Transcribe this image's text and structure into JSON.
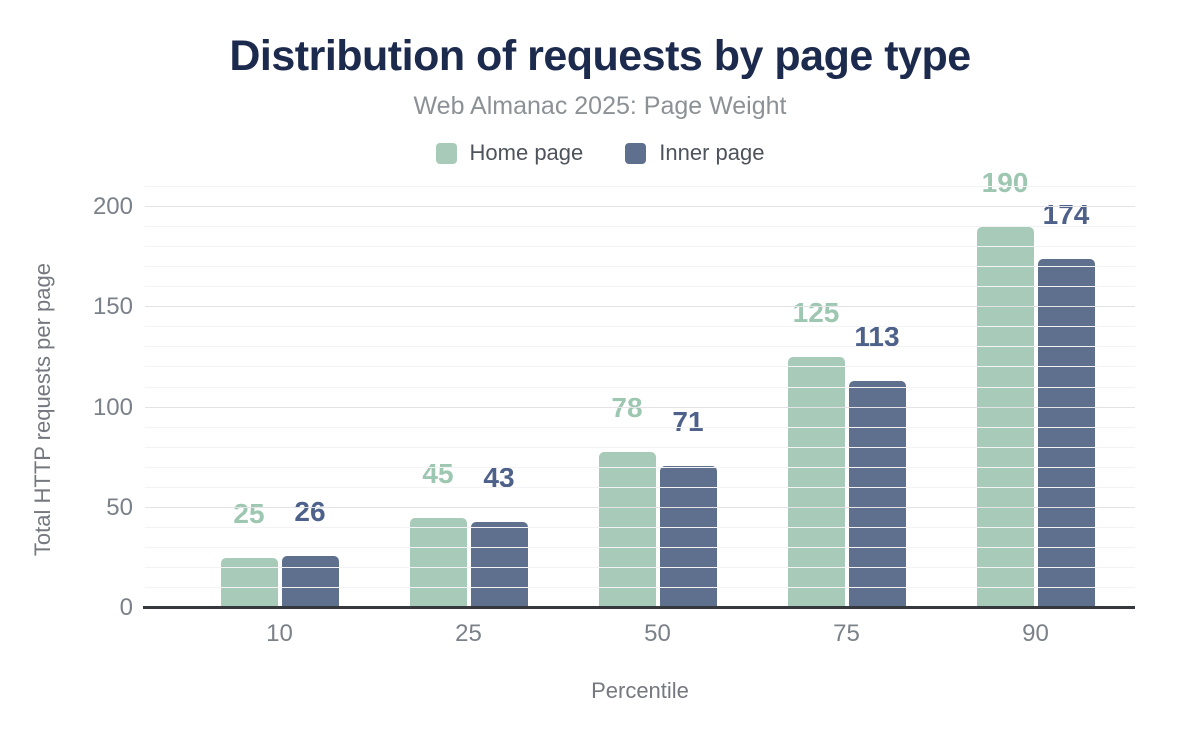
{
  "header": {
    "title": "Distribution of requests by page type",
    "subtitle": "Web Almanac 2025: Page Weight"
  },
  "colors": {
    "title": "#1c2a4d",
    "subtitle": "#8c9196",
    "axis_text": "#7b8189",
    "axis_line": "#35383d",
    "home_bar": "#a8cab9",
    "home_label": "#9dc7b1",
    "inner_bar": "#5e708e",
    "inner_label": "#4e618a"
  },
  "chart_data": {
    "type": "bar",
    "title": "Distribution of requests by page type",
    "subtitle": "Web Almanac 2025: Page Weight",
    "xlabel": "Percentile",
    "ylabel": "Total HTTP requests per page",
    "categories": [
      "10",
      "25",
      "50",
      "75",
      "90"
    ],
    "series": [
      {
        "name": "Home page",
        "color": "#a8cab9",
        "label_color": "#9dc7b1",
        "values": [
          25,
          45,
          78,
          125,
          190
        ]
      },
      {
        "name": "Inner page",
        "color": "#5e708e",
        "label_color": "#4e618a",
        "values": [
          26,
          43,
          71,
          113,
          174
        ]
      }
    ],
    "ylim": [
      0,
      215
    ],
    "yticks": [
      0,
      50,
      100,
      150,
      200
    ],
    "minor_grid_step": 10,
    "grid": "horizontal",
    "legend_position": "top",
    "data_labels": true
  }
}
